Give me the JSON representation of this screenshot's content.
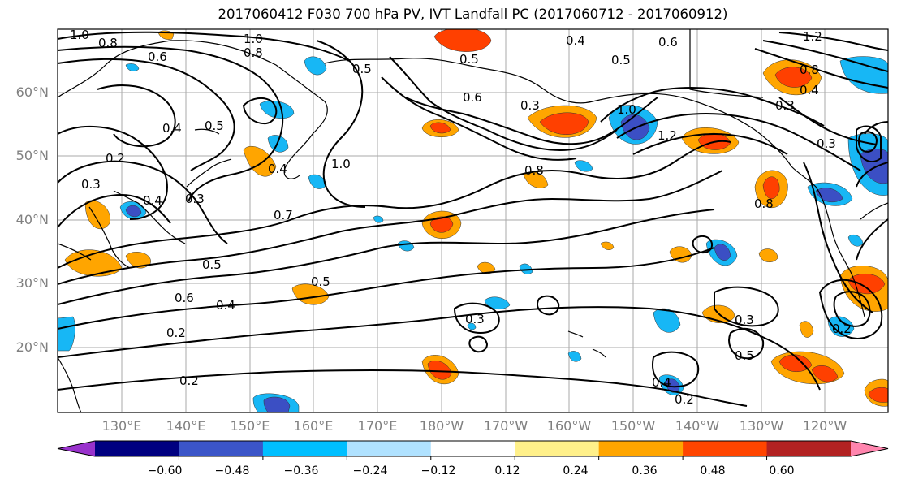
{
  "title": "2017060412 F030 700 hPa PV, IVT Landfall PC (2017060712 - 2017060912)",
  "colors": {
    "land_outline": "#000000",
    "grid": "#aaaaaa",
    "neg_strong": "#3b4fc4",
    "neg_mid": "#17b7f5",
    "pos_weak": "#ffe57f",
    "pos_mid": "#ffa500",
    "pos_strong": "#ff4000"
  },
  "lat_labels": [
    "60°N",
    "50°N",
    "40°N",
    "30°N",
    "20°N"
  ],
  "lon_labels": [
    "130°E",
    "140°E",
    "150°E",
    "160°E",
    "170°E",
    "180°W",
    "170°W",
    "160°W",
    "150°W",
    "140°W",
    "130°W",
    "120°W"
  ],
  "colorbar": {
    "ticks": [
      "−0.60",
      "−0.48",
      "−0.36",
      "−0.24",
      "−0.12",
      "0.12",
      "0.24",
      "0.36",
      "0.48",
      "0.60"
    ],
    "colors": [
      "#9932cc",
      "#000080",
      "#3b55c8",
      "#00bfff",
      "#b0e2ff",
      "#ffffff",
      "#fff08a",
      "#ffa500",
      "#ff4500",
      "#b22222",
      "#ff85ae"
    ]
  },
  "contour_labels": [
    "1.0",
    "0.8",
    "0.6",
    "1.0",
    "0.8",
    "0.5",
    "0.4",
    "0.5",
    "0.6",
    "1.2",
    "0.5",
    "0.6",
    "0.3",
    "1.0",
    "1.2",
    "0.8",
    "0.4",
    "0.3",
    "0.4",
    "0.5",
    "0.2",
    "0.3",
    "0.4",
    "0.3",
    "0.4",
    "1.0",
    "0.8",
    "0.3",
    "0.7",
    "0.8",
    "0.5",
    "0.5",
    "0.6",
    "0.4",
    "0.2",
    "0.3",
    "0.3",
    "0.5",
    "0.2",
    "0.4",
    "0.2"
  ]
}
